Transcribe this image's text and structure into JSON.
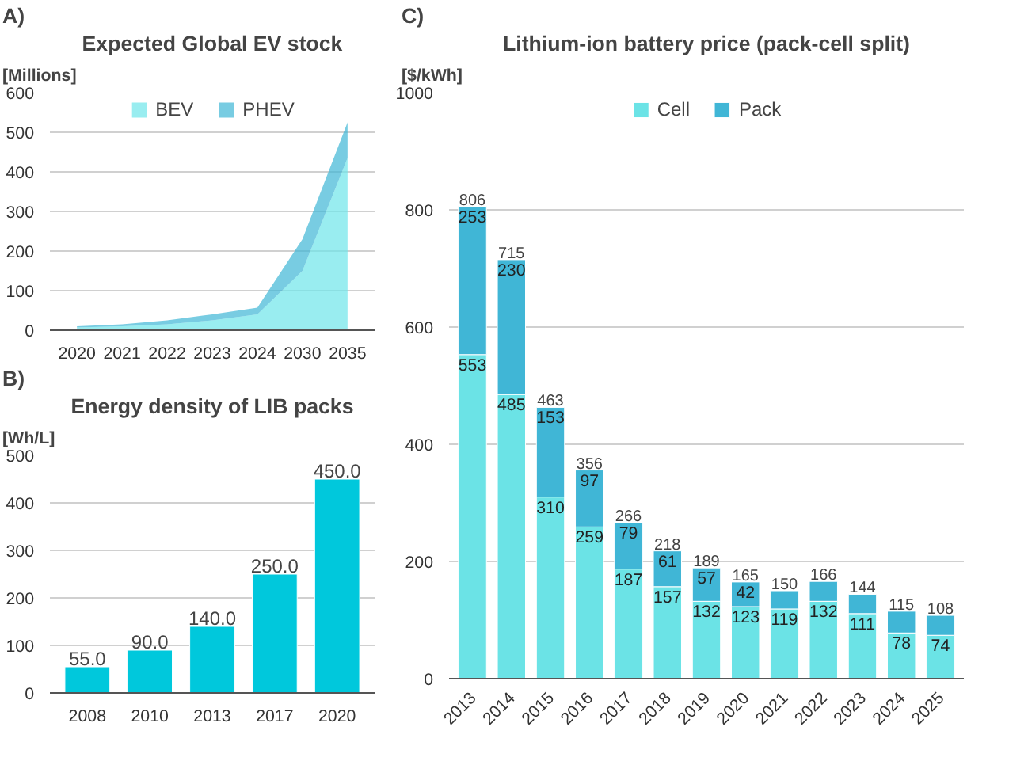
{
  "chart_data": [
    {
      "type": "area",
      "annotations": [
        "A)"
      ],
      "title": "Expected Global EV stock",
      "ylabel": "[Millions]",
      "categories": [
        "2020",
        "2021",
        "2022",
        "2023",
        "2024",
        "2030",
        "2035"
      ],
      "stacked": true,
      "ylim": [
        0,
        600
      ],
      "yticks": [
        0,
        100,
        200,
        300,
        400,
        500,
        600
      ],
      "grid": "y",
      "legend": "top",
      "series": [
        {
          "name": "BEV",
          "color": "#6ee6ea",
          "values": [
            7,
            10,
            15,
            25,
            40,
            150,
            435
          ]
        },
        {
          "name": "PHEV",
          "color": "#3fb6d6",
          "values": [
            3,
            5,
            10,
            15,
            17,
            80,
            90
          ]
        }
      ]
    },
    {
      "type": "bar",
      "annotations": [
        "B)"
      ],
      "title": "Energy density of LIB packs",
      "ylabel": "[Wh/L]",
      "categories": [
        "2008",
        "2010",
        "2013",
        "2017",
        "2020"
      ],
      "ylim": [
        0,
        500
      ],
      "yticks": [
        0,
        100,
        200,
        300,
        400,
        500
      ],
      "grid": "y",
      "series": [
        {
          "color": "#00c8dc",
          "values": [
            55,
            90,
            140,
            250,
            450
          ],
          "value_labels": [
            "55.0",
            "90.0",
            "140.0",
            "250.0",
            "450.0"
          ]
        }
      ]
    },
    {
      "type": "bar",
      "annotations": [
        "C)"
      ],
      "title": "Lithium-ion battery price (pack-cell split)",
      "ylabel": "[$/kWh]",
      "categories": [
        "2013",
        "2014",
        "2015",
        "2016",
        "2017",
        "2018",
        "2019",
        "2020",
        "2021",
        "2022",
        "2023",
        "2024",
        "2025"
      ],
      "stacked": true,
      "ylim": [
        0,
        1000
      ],
      "yticks": [
        0,
        200,
        400,
        600,
        800,
        1000
      ],
      "grid": "y",
      "legend": "top",
      "series": [
        {
          "name": "Cell",
          "color": "#6be3e6",
          "values": [
            553,
            485,
            310,
            259,
            187,
            157,
            132,
            123,
            119,
            132,
            111,
            78,
            74
          ],
          "value_labels": [
            "553",
            "485",
            "310",
            "259",
            "187",
            "157",
            "132",
            "123",
            "119",
            "132",
            "111",
            "78",
            "74"
          ]
        },
        {
          "name": "Pack",
          "color": "#40b6d6",
          "values": [
            253,
            230,
            153,
            97,
            79,
            61,
            57,
            42,
            31,
            34,
            33,
            37,
            34
          ],
          "value_labels": [
            "253",
            "230",
            "153",
            "97",
            "79",
            "61",
            "57",
            "42",
            null,
            null,
            null,
            null,
            null
          ]
        }
      ],
      "totals": [
        "806",
        "715",
        "463",
        "356",
        "266",
        "218",
        "189",
        "165",
        "150",
        "166",
        "144",
        "115",
        "108"
      ]
    }
  ]
}
